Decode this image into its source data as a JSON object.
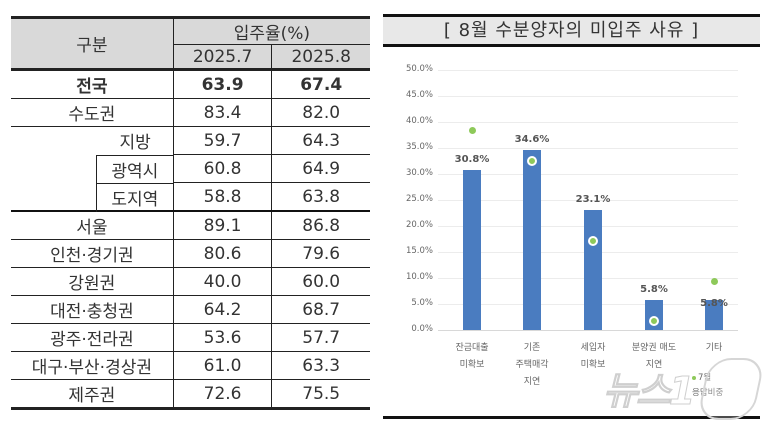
{
  "table": {
    "header": {
      "category": "구분",
      "group": "입주율(%)",
      "col1": "2025.7",
      "col2": "2025.8"
    },
    "rows": [
      {
        "label": "전국",
        "v1": "63.9",
        "v2": "67.4",
        "bold": true
      },
      {
        "label": "수도권",
        "v1": "83.4",
        "v2": "82.0"
      },
      {
        "label": "지방",
        "v1": "59.7",
        "v2": "64.3"
      },
      {
        "label": "광역시",
        "v1": "60.8",
        "v2": "64.9",
        "sub": true
      },
      {
        "label": "도지역",
        "v1": "58.8",
        "v2": "63.8",
        "sub": true
      },
      {
        "label": "서울",
        "v1": "89.1",
        "v2": "86.8"
      },
      {
        "label": "인천·경기권",
        "v1": "80.6",
        "v2": "79.6"
      },
      {
        "label": "강원권",
        "v1": "40.0",
        "v2": "60.0"
      },
      {
        "label": "대전·충청권",
        "v1": "64.2",
        "v2": "68.7"
      },
      {
        "label": "광주·전라권",
        "v1": "53.6",
        "v2": "57.7"
      },
      {
        "label": "대구·부산·경상권",
        "v1": "61.0",
        "v2": "63.3"
      },
      {
        "label": "제주권",
        "v1": "72.6",
        "v2": "75.5"
      }
    ]
  },
  "chart": {
    "title": "[ 8월  수분양자의  미입주  사유 ]",
    "yticks": [
      "50.0%",
      "45.0%",
      "40.0%",
      "35.0%",
      "30.0%",
      "25.0%",
      "20.0%",
      "15.0%",
      "10.0%",
      "5.0%",
      "0.0%"
    ],
    "bar_labels": [
      "30.8%",
      "34.6%",
      "23.1%",
      "5.8%",
      "5.8%"
    ],
    "x_labels": [
      "잔금대출\n미확보",
      "기존\n주택매각\n지연",
      "세입자\n미확보",
      "분양권 매도\n지연",
      "기타"
    ],
    "legend": [
      "7월",
      "응답비중"
    ]
  },
  "chart_data": {
    "type": "bar",
    "title": "[8월 수분양자의 미입주 사유]",
    "categories": [
      "잔금대출 미확보",
      "기존 주택매각 지연",
      "세입자 미확보",
      "분양권 매도 지연",
      "기타"
    ],
    "series": [
      {
        "name": "8월 응답비중",
        "type": "bar",
        "values": [
          30.8,
          34.6,
          23.1,
          5.8,
          5.8
        ],
        "color": "#4a7cc0"
      },
      {
        "name": "7월 응답비중",
        "type": "scatter",
        "values": [
          38.3,
          32.5,
          17.1,
          1.7,
          9.4
        ],
        "color": "#8ec95a"
      }
    ],
    "xlabel": "",
    "ylabel": "",
    "ylim": [
      0,
      50
    ],
    "yticks": [
      0,
      5,
      10,
      15,
      20,
      25,
      30,
      35,
      40,
      45,
      50
    ],
    "ytick_format": "percent_1dp",
    "grid": true,
    "legend_position": "bottom-right"
  },
  "watermark": {
    "text": "뉴스1"
  }
}
